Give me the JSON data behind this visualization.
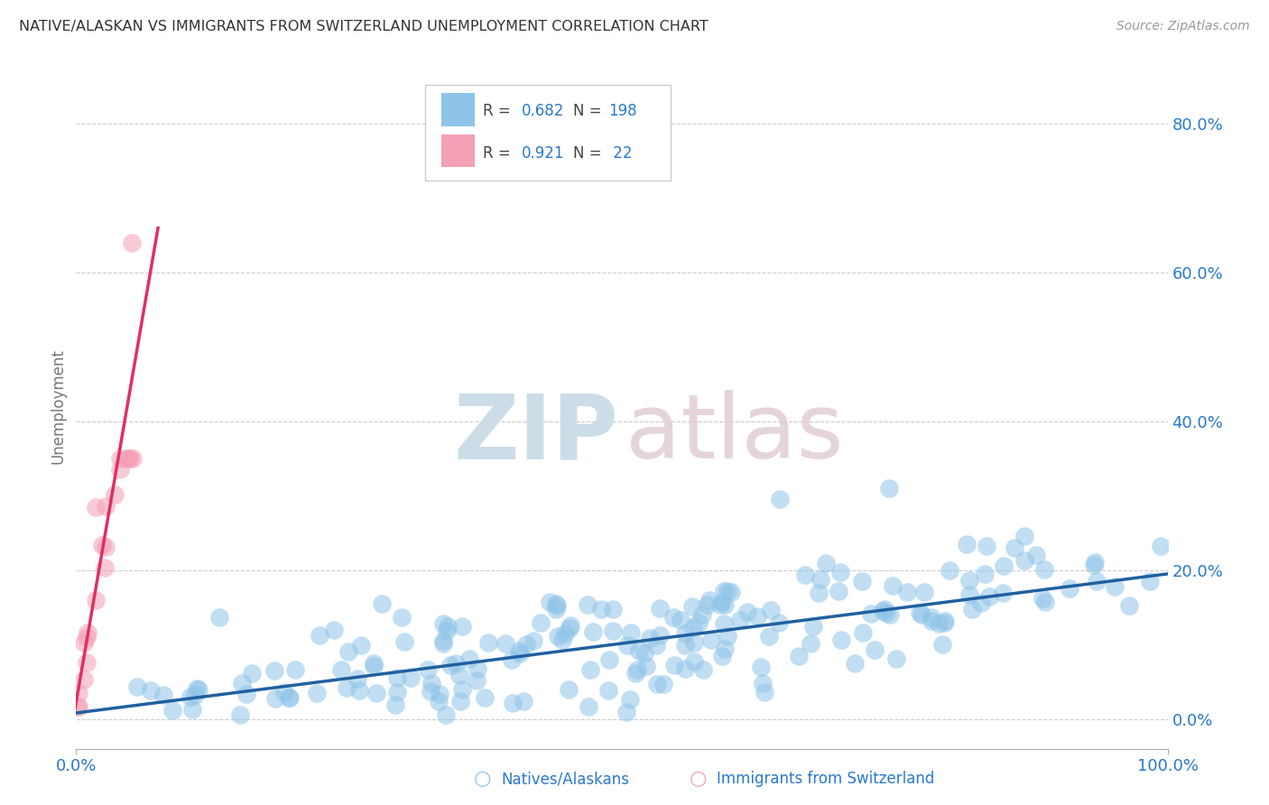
{
  "title": "NATIVE/ALASKAN VS IMMIGRANTS FROM SWITZERLAND UNEMPLOYMENT CORRELATION CHART",
  "source": "Source: ZipAtlas.com",
  "ylabel_label": "Unemployment",
  "ylabel_ticks": [
    "0.0%",
    "20.0%",
    "40.0%",
    "60.0%",
    "80.0%"
  ],
  "ylabel_values": [
    0.0,
    0.2,
    0.4,
    0.6,
    0.8
  ],
  "xlim": [
    0.0,
    1.0
  ],
  "ylim": [
    -0.04,
    0.88
  ],
  "blue_color": "#8ec4e8",
  "pink_color": "#f4a0b5",
  "blue_line_color": "#2060a0",
  "pink_line_color": "#e03060",
  "legend_n_color": "#2979cc",
  "legend_r_color": "#444444",
  "background_color": "#ffffff",
  "grid_color": "#cccccc",
  "title_color": "#333333",
  "blue_trend_x": [
    0.0,
    1.0
  ],
  "blue_trend_y": [
    0.008,
    0.195
  ],
  "pink_trend_x": [
    -0.005,
    0.075
  ],
  "pink_trend_y": [
    -0.02,
    0.66
  ]
}
